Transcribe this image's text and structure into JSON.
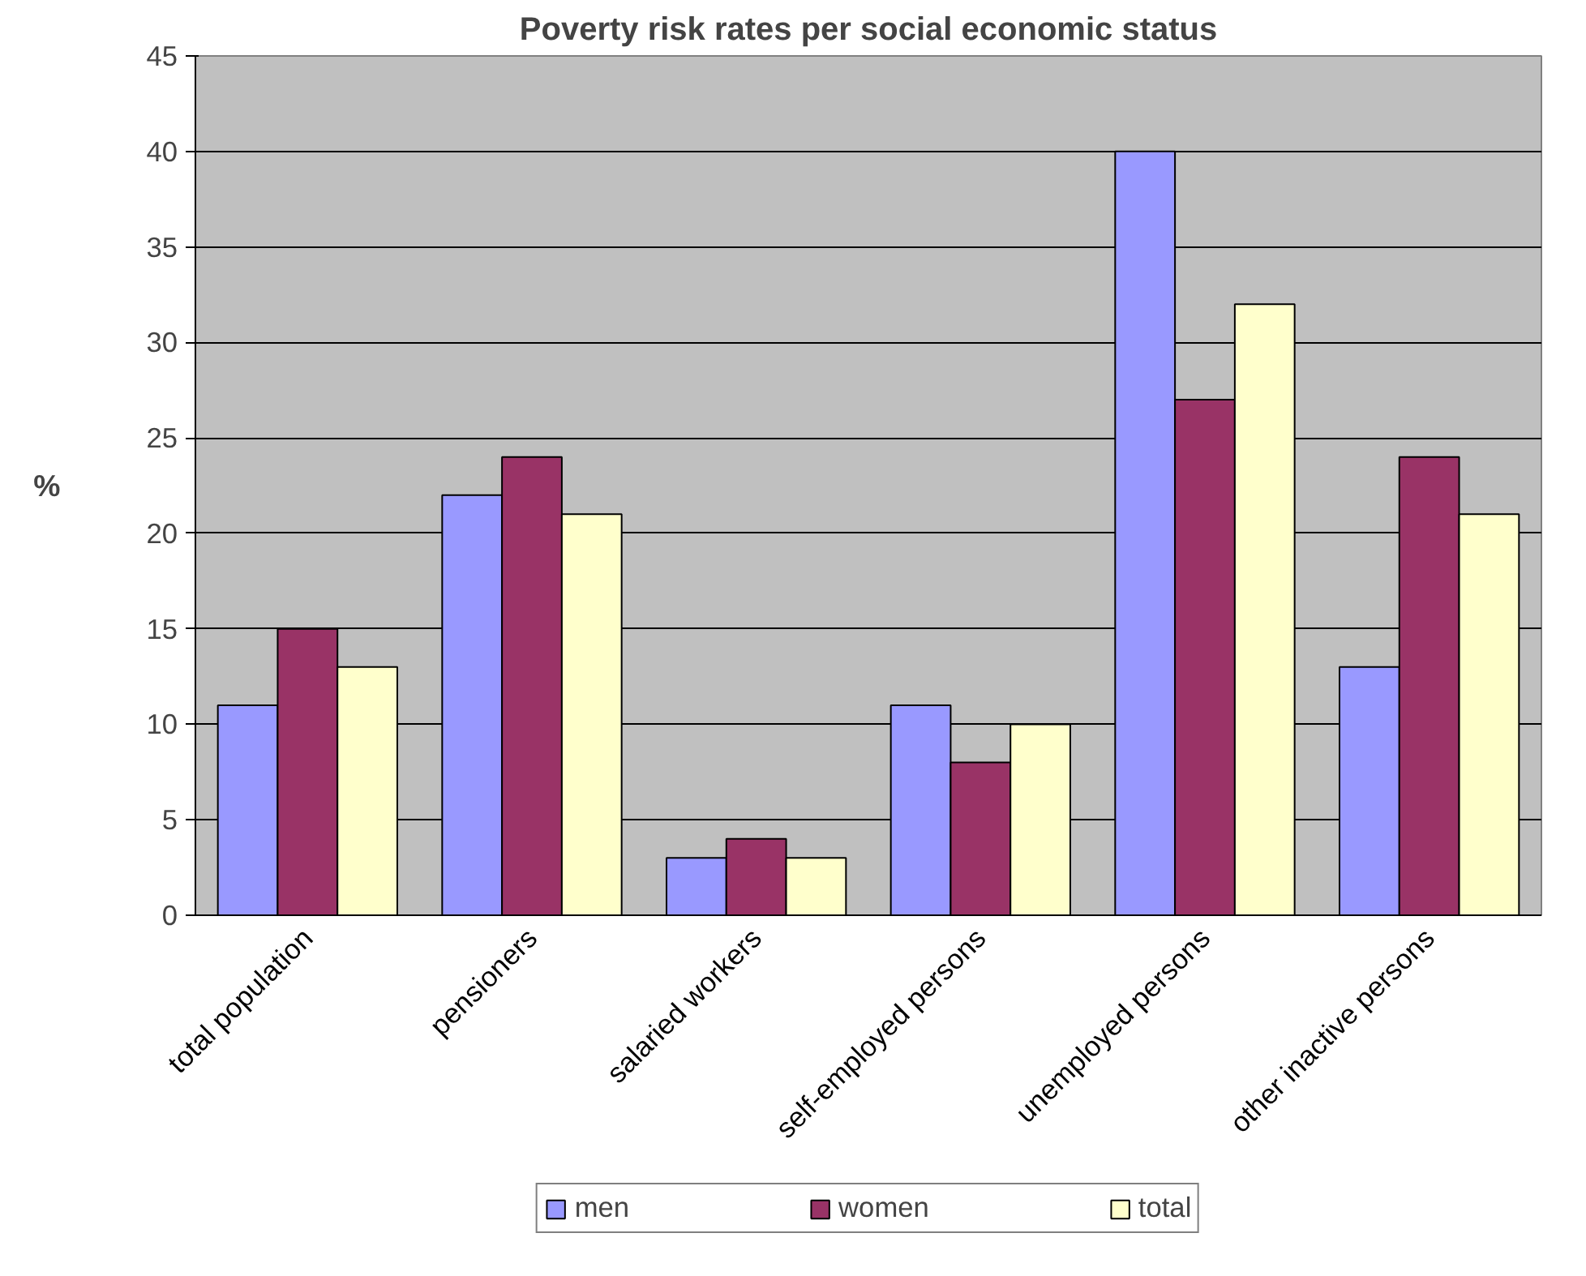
{
  "chart_data": {
    "type": "bar",
    "title": "Poverty risk rates per social economic status",
    "ylabel": "%",
    "categories": [
      "total population",
      "pensioners",
      "salaried workers",
      "self-employed persons",
      "unemployed persons",
      "other inactive persons"
    ],
    "series": [
      {
        "name": "men",
        "color": "#9999ff",
        "values": [
          11,
          22,
          3,
          11,
          40,
          13
        ]
      },
      {
        "name": "women",
        "color": "#993366",
        "values": [
          15,
          24,
          4,
          8,
          27,
          24
        ]
      },
      {
        "name": "total",
        "color": "#ffffcc",
        "values": [
          13,
          21,
          3,
          10,
          32,
          21
        ]
      }
    ],
    "ylim": [
      0,
      45
    ],
    "yticks": [
      0,
      5,
      10,
      15,
      20,
      25,
      30,
      35,
      40,
      45
    ],
    "grid": "y",
    "legend": "bottom"
  }
}
